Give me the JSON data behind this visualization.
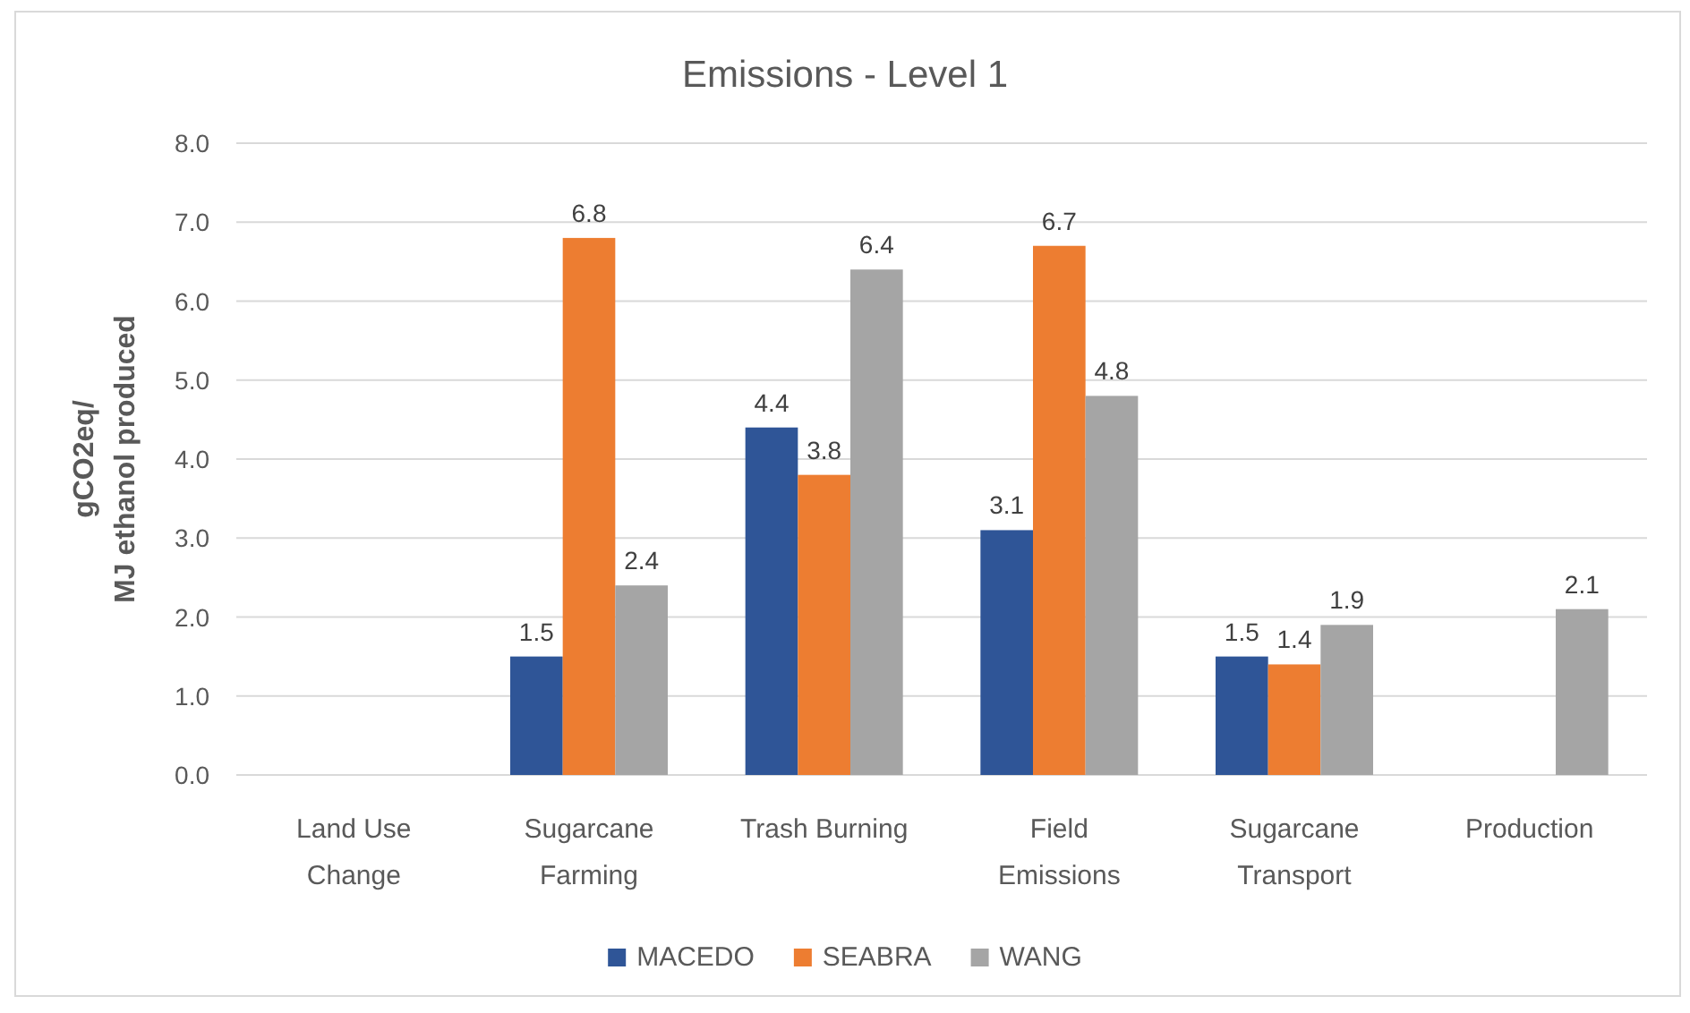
{
  "chart_data": {
    "type": "bar",
    "title": "Emissions - Level 1",
    "ylabel": "gCO2eq/\nMJ ethanol produced",
    "categories": [
      "Land Use Change",
      "Sugarcane Farming",
      "Trash Burning",
      "Field Emissions",
      "Sugarcane Transport",
      "Production"
    ],
    "series": [
      {
        "name": "MACEDO",
        "color": "#2f5597",
        "values": [
          null,
          1.5,
          4.4,
          3.1,
          1.5,
          null
        ]
      },
      {
        "name": "SEABRA",
        "color": "#ed7d31",
        "values": [
          null,
          6.8,
          3.8,
          6.7,
          1.4,
          null
        ]
      },
      {
        "name": "WANG",
        "color": "#a5a5a5",
        "values": [
          null,
          2.4,
          6.4,
          4.8,
          1.9,
          2.1
        ]
      }
    ],
    "ylim": [
      0,
      8
    ],
    "yticks": [
      {
        "value": 0,
        "label": "0.0"
      },
      {
        "value": 1,
        "label": "1.0"
      },
      {
        "value": 2,
        "label": "2.0"
      },
      {
        "value": 3,
        "label": "3.0"
      },
      {
        "value": 4,
        "label": "4.0"
      },
      {
        "value": 5,
        "label": "5.0"
      },
      {
        "value": 6,
        "label": "6.0"
      },
      {
        "value": 7,
        "label": "7.0"
      },
      {
        "value": 8,
        "label": "8.0"
      }
    ],
    "grid": "y",
    "legend": "bottom",
    "data_labels": true
  }
}
